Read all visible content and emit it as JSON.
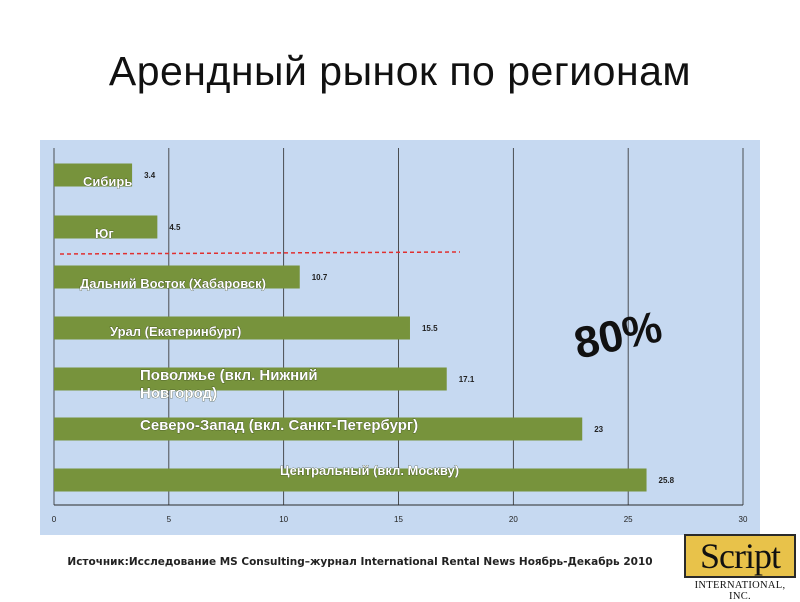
{
  "slide": {
    "title": "Арендный рынок по регионам"
  },
  "chart_data": {
    "type": "bar",
    "orientation": "horizontal",
    "categories": [
      "Сибирь",
      "Юг",
      "Дальний Восток (Хабаровск)",
      "Урал (Екатеринбург)",
      "Поволжье (вкл. Нижний Новгород)",
      "Северо-Запад (вкл. Санкт-Петербург)",
      "Центральный (вкл. Москву)"
    ],
    "values": [
      3.4,
      4.5,
      10.7,
      15.5,
      17.1,
      23,
      25.8
    ],
    "xlim": [
      0,
      30
    ],
    "xticks": [
      "0",
      "5",
      "10",
      "15",
      "20",
      "25",
      "30"
    ],
    "grid": true,
    "bar_color": "#77933c",
    "background_color": "#c6d9f1",
    "annotation": "80%"
  },
  "source": "Источник:Исследование MS Consulting–журнал International Rental News Ноябрь-Декабрь 2010",
  "logo": {
    "word": "Script",
    "subtitle": "INTERNATIONAL, INC."
  }
}
